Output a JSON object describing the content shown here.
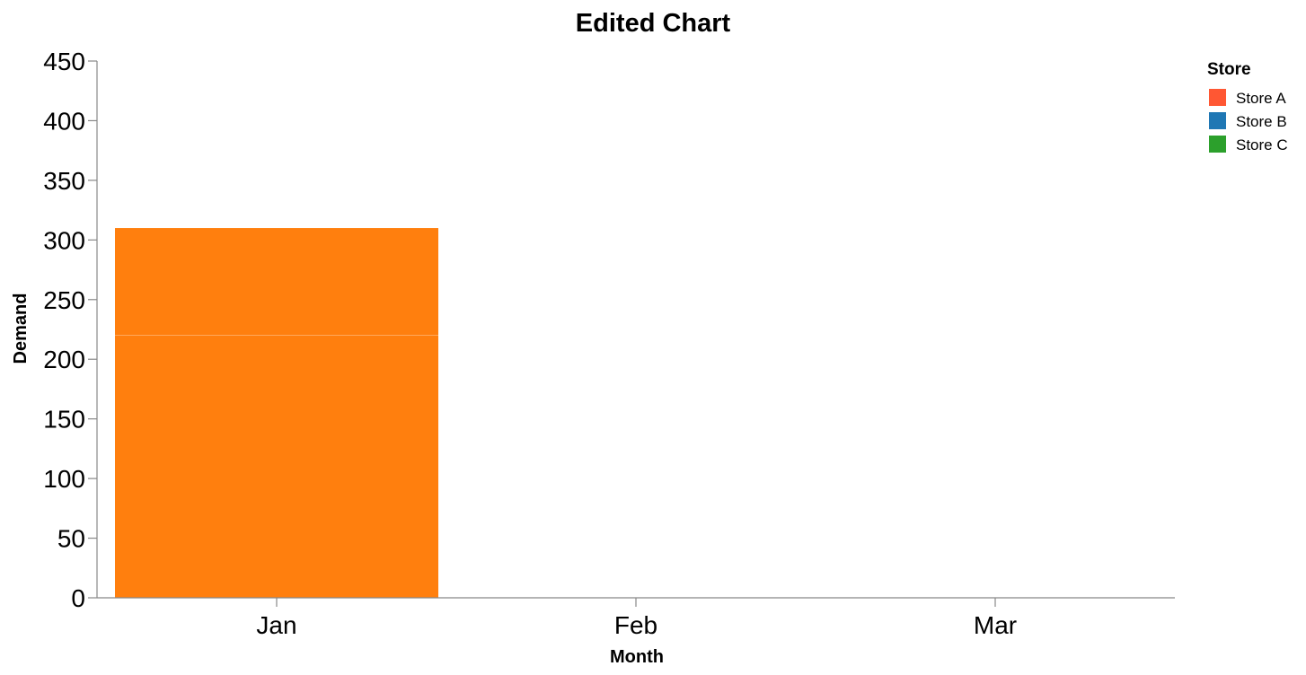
{
  "chart_data": {
    "type": "bar",
    "stacked": true,
    "title": "Edited Chart",
    "xlabel": "Month",
    "ylabel": "Demand",
    "categories": [
      "Jan",
      "Feb",
      "Mar"
    ],
    "ylim": [
      0,
      450
    ],
    "yticks": [
      "0",
      "50",
      "100",
      "150",
      "200",
      "250",
      "300",
      "350",
      "400",
      "450"
    ],
    "grid": false,
    "legend": {
      "title": "Store",
      "placement": "top-right",
      "entries": [
        {
          "label": "Store A",
          "color": "#ff5733"
        },
        {
          "label": "Store B",
          "color": "#1f77b4"
        },
        {
          "label": "Store C",
          "color": "#2ca02c"
        }
      ]
    },
    "bars": [
      {
        "category": "Jan",
        "base": 0,
        "value": 220,
        "color": "#ff7f0e"
      },
      {
        "category": "Jan",
        "base": 220,
        "value": 90,
        "color": "#ff7f0e"
      }
    ]
  }
}
